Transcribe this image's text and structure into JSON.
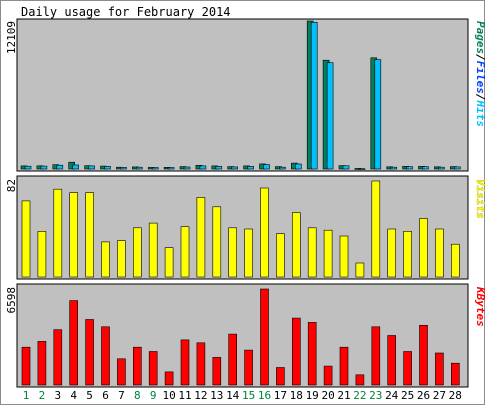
{
  "title": "Daily usage for February 2014",
  "colors": {
    "background": "#ffffff",
    "panel_bg": "#c0c0c0",
    "pages": "#00805c",
    "files": "#0040ff",
    "hits": "#00c0ff",
    "visits": "#ffff00",
    "kbytes": "#ff0000",
    "weekend_label": "#008040",
    "weekday_label": "#000000"
  },
  "chart_data": [
    {
      "type": "bar",
      "panel": "hits",
      "ylabel_max": "12109",
      "ymax": 12109,
      "categories": [
        "1",
        "2",
        "3",
        "4",
        "5",
        "6",
        "7",
        "8",
        "9",
        "10",
        "11",
        "12",
        "13",
        "14",
        "15",
        "16",
        "17",
        "18",
        "19",
        "20",
        "21",
        "22",
        "23",
        "24",
        "25",
        "26",
        "27",
        "28"
      ],
      "weekend_days": [
        1,
        2,
        8,
        9,
        15,
        16,
        22,
        23
      ],
      "legend": [
        {
          "text": "Pages",
          "color": "#00805c"
        },
        {
          "text": "/",
          "color": "#000000"
        },
        {
          "text": "Files",
          "color": "#0040ff"
        },
        {
          "text": "/",
          "color": "#000000"
        },
        {
          "text": "Hits",
          "color": "#00c0ff"
        }
      ],
      "series": [
        {
          "name": "Pages",
          "values": [
            250,
            260,
            350,
            560,
            270,
            240,
            150,
            170,
            130,
            140,
            200,
            300,
            250,
            200,
            250,
            420,
            200,
            480,
            12109,
            8900,
            280,
            50,
            9100,
            180,
            220,
            220,
            180,
            200
          ]
        },
        {
          "name": "Hits",
          "values": [
            230,
            240,
            310,
            330,
            250,
            210,
            140,
            150,
            120,
            120,
            160,
            250,
            210,
            170,
            210,
            360,
            150,
            410,
            12000,
            8700,
            260,
            30,
            8950,
            150,
            190,
            190,
            150,
            170
          ]
        }
      ]
    },
    {
      "type": "bar",
      "panel": "visits",
      "ylabel_max": "82",
      "ymax": 82,
      "legend": [
        {
          "text": "Visits",
          "color": "#ffff00"
        }
      ],
      "series": [
        {
          "name": "Visits",
          "values": [
            65,
            39,
            75,
            72,
            72,
            30,
            31,
            42,
            46,
            25,
            43,
            68,
            60,
            42,
            41,
            76,
            37,
            55,
            42,
            40,
            35,
            12,
            82,
            41,
            39,
            50,
            41,
            28
          ]
        }
      ]
    },
    {
      "type": "bar",
      "panel": "kbytes",
      "ylabel_max": "6598",
      "ymax": 6598,
      "legend": [
        {
          "text": "KBytes",
          "color": "#ff0000"
        }
      ],
      "series": [
        {
          "name": "KBytes",
          "values": [
            2600,
            3000,
            3800,
            5800,
            4500,
            4000,
            1800,
            2600,
            2300,
            900,
            3100,
            2900,
            1900,
            3500,
            2400,
            6598,
            1200,
            4600,
            4300,
            1300,
            2600,
            700,
            4000,
            3400,
            2300,
            4100,
            2200,
            1500
          ]
        }
      ]
    }
  ]
}
